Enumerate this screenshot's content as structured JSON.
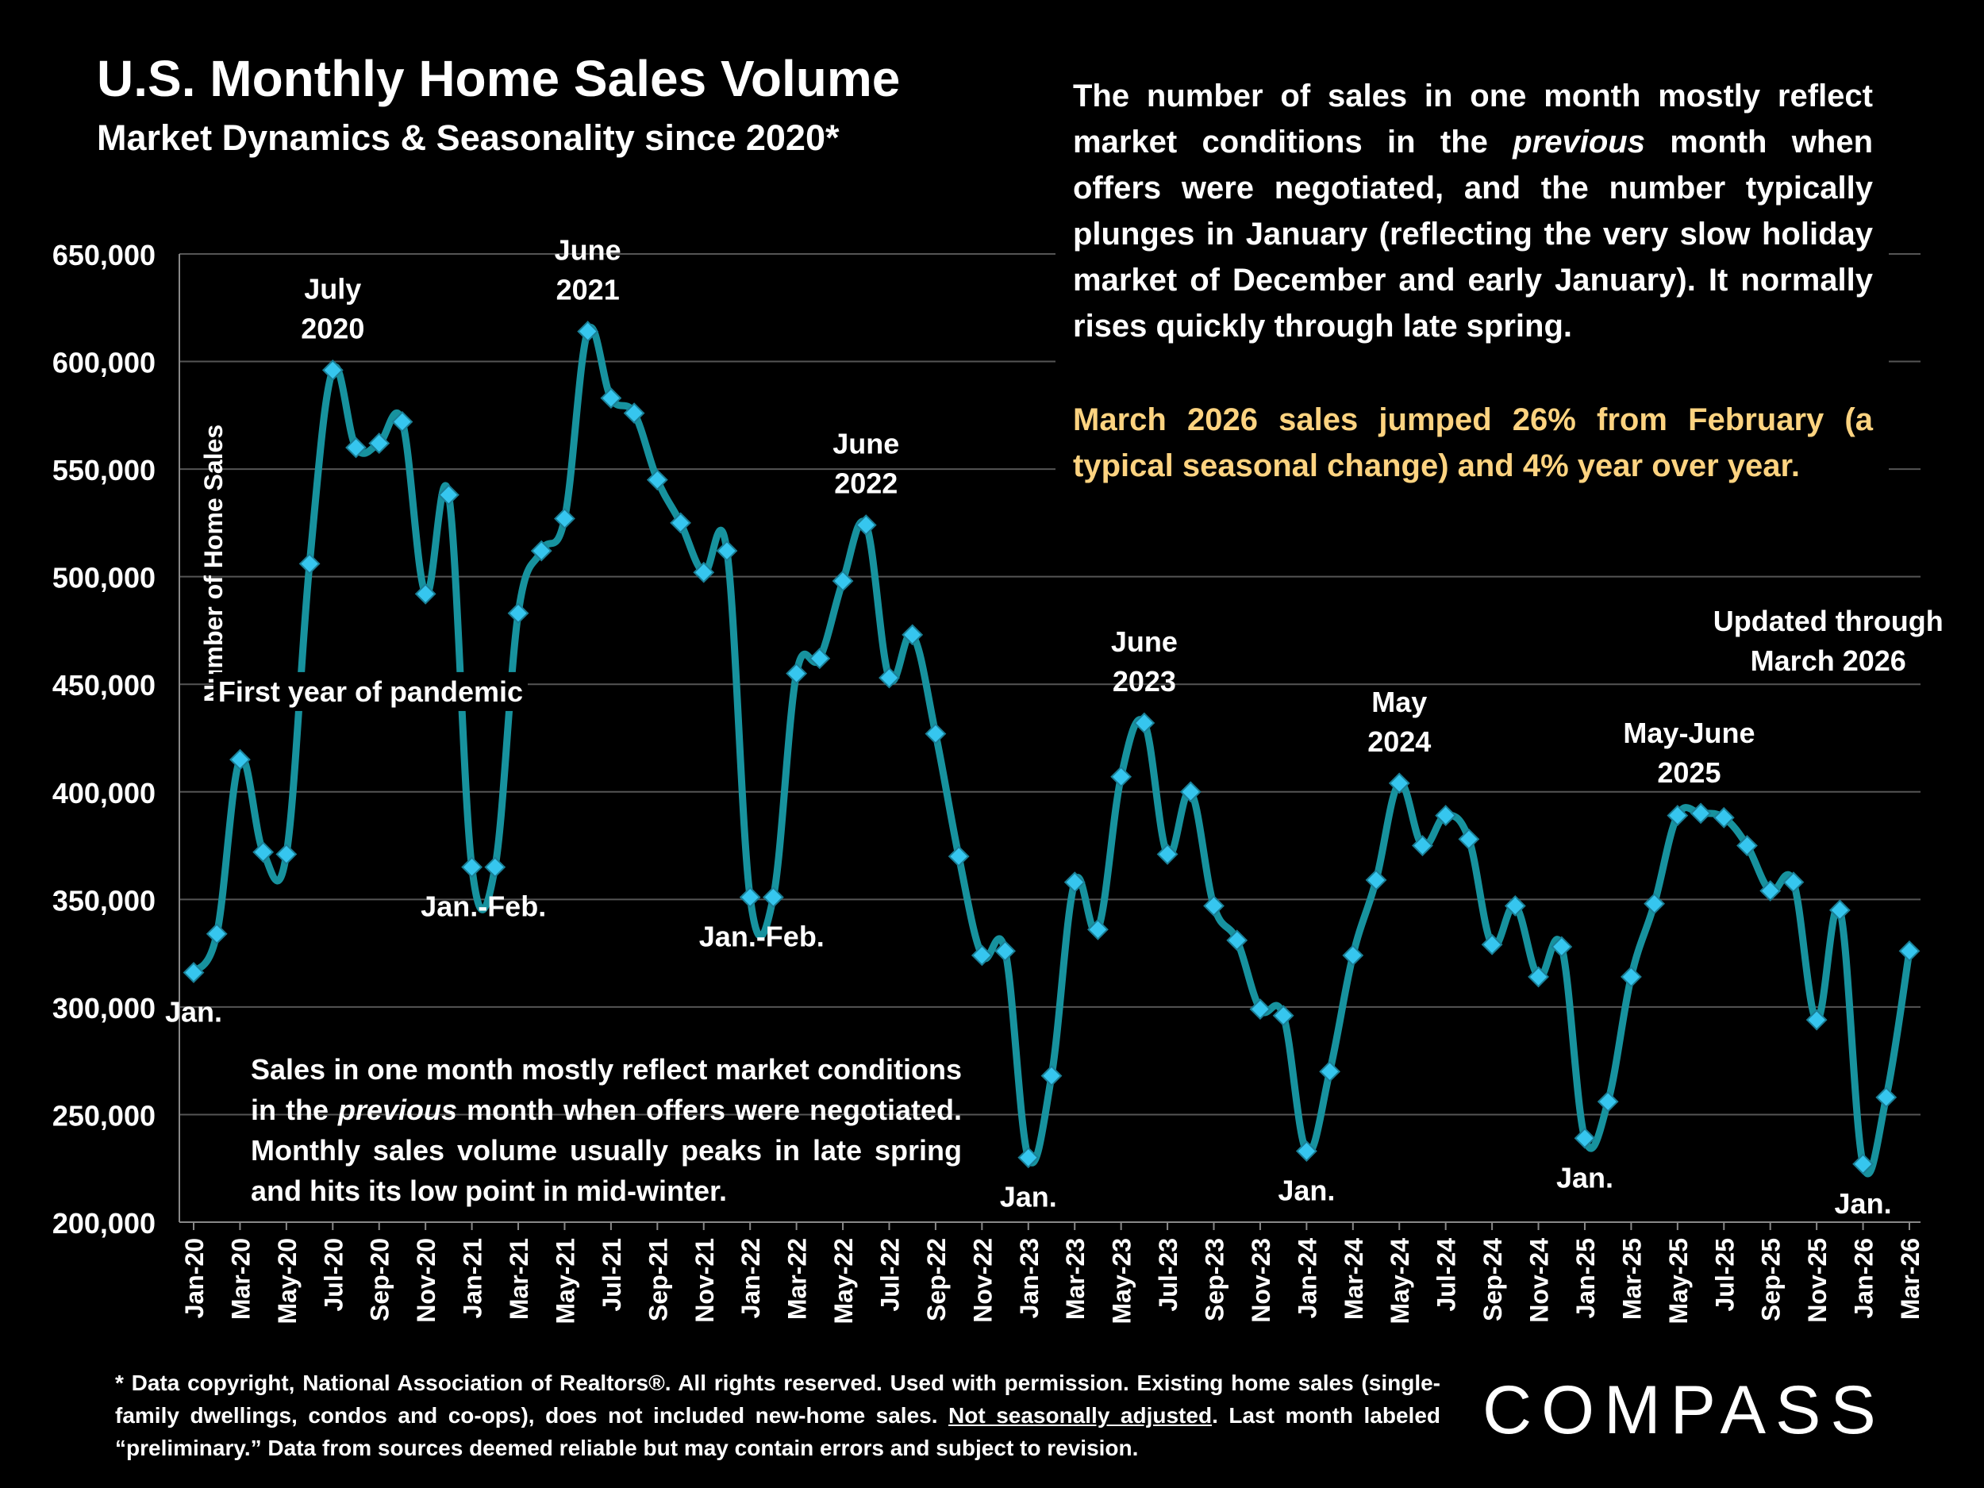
{
  "title": "U.S. Monthly Home Sales Volume",
  "subtitle": "Market Dynamics & Seasonality since 2020*",
  "description": {
    "part1": "The number of sales in one month mostly reflect market conditions in the ",
    "italic": "previous",
    "part2": " month when offers were negotiated, and the number typically plunges in January (reflecting the very slow holiday market of December and early January). It normally rises quickly through late spring."
  },
  "highlight": "March 2026 sales jumped 26% from February (a typical seasonal change) and 4% year over year.",
  "note": {
    "part1": "Sales in one month mostly reflect market conditions in the ",
    "italic": "previous",
    "part2": " month when offers were negotiated. Monthly sales volume usually peaks in late spring and hits its low point in mid-winter."
  },
  "footnote": {
    "part1": "* Data copyright, National Association of Realtors®. All rights reserved. Used with permission. Existing home sales (single-family dwellings, condos and co-ops), does not included new-home sales. ",
    "underlined": "Not seasonally adjusted",
    "part2": ". Last month labeled “preliminary.” Data from sources deemed reliable but may contain errors and subject to revision."
  },
  "logo": "COMPASS",
  "colors": {
    "background": "#000000",
    "line": "#17929e",
    "marker": "#36c6ef",
    "highlight": "#fdd380",
    "grid": "#555555",
    "text": "#ffffff"
  },
  "chart_data": {
    "type": "line",
    "title": "U.S. Monthly Home Sales Volume",
    "ylabel": "Number of Home Sales",
    "xlabel": "",
    "ylim": [
      200000,
      650000
    ],
    "yticks": [
      200000,
      250000,
      300000,
      350000,
      400000,
      450000,
      500000,
      550000,
      600000,
      650000
    ],
    "ytick_labels": [
      "200,000",
      "250,000",
      "300,000",
      "350,000",
      "400,000",
      "450,000",
      "500,000",
      "550,000",
      "600,000",
      "650,000"
    ],
    "x_tick_labels": [
      "Jan-20",
      "Mar-20",
      "May-20",
      "Jul-20",
      "Sep-20",
      "Nov-20",
      "Jan-21",
      "Mar-21",
      "May-21",
      "Jul-21",
      "Sep-21",
      "Nov-21",
      "Jan-22",
      "Mar-22",
      "May-22",
      "Jul-22",
      "Sep-22",
      "Nov-22",
      "Jan-23",
      "Mar-23",
      "May-23",
      "Jul-23",
      "Sep-23",
      "Nov-23",
      "Jan-24",
      "Mar-24",
      "May-24",
      "Jul-24",
      "Sep-24",
      "Nov-24",
      "Jan-25",
      "Mar-25",
      "May-25",
      "Jul-25",
      "Sep-25",
      "Nov-25",
      "Jan-26",
      "Mar-26"
    ],
    "x_tick_every": 2,
    "grid": true,
    "series": [
      {
        "name": "Monthly Home Sales",
        "values": [
          316000,
          334000,
          415000,
          372000,
          371000,
          506000,
          596000,
          560000,
          562000,
          572000,
          492000,
          538000,
          365000,
          365000,
          483000,
          512000,
          527000,
          614000,
          583000,
          576000,
          545000,
          525000,
          502000,
          512000,
          351000,
          351000,
          455000,
          462000,
          498000,
          524000,
          453000,
          473000,
          427000,
          370000,
          324000,
          326000,
          230000,
          268000,
          358000,
          336000,
          407000,
          432000,
          371000,
          400000,
          347000,
          331000,
          299000,
          296000,
          233000,
          270000,
          324000,
          359000,
          404000,
          375000,
          389000,
          378000,
          329000,
          347000,
          314000,
          328000,
          239000,
          256000,
          314000,
          348000,
          389000,
          390000,
          388000,
          375000,
          354000,
          358000,
          294000,
          345000,
          227000,
          258000,
          326000
        ]
      }
    ],
    "annotations": [
      {
        "id": "jan-2020",
        "text": "Jan.",
        "index": 0,
        "position": "below"
      },
      {
        "id": "jul-2020",
        "text": "July\n2020",
        "index": 6,
        "position": "above"
      },
      {
        "id": "pandemic",
        "text": "First year of pandemic",
        "index": 9,
        "position": "middle"
      },
      {
        "id": "janfeb-2021",
        "text": "Jan.-Feb.",
        "index": 12.5,
        "position": "below"
      },
      {
        "id": "jun-2021",
        "text": "June\n2021",
        "index": 17,
        "position": "above"
      },
      {
        "id": "janfeb-2022",
        "text": "Jan.-Feb.",
        "index": 24.5,
        "position": "below"
      },
      {
        "id": "jun-2022",
        "text": "June\n2022",
        "index": 29,
        "position": "above"
      },
      {
        "id": "jan-2023",
        "text": "Jan.",
        "index": 36,
        "position": "below"
      },
      {
        "id": "jun-2023",
        "text": "June\n2023",
        "index": 41,
        "position": "above"
      },
      {
        "id": "jan-2024",
        "text": "Jan.",
        "index": 48,
        "position": "below"
      },
      {
        "id": "may-2024",
        "text": "May\n2024",
        "index": 52,
        "position": "above"
      },
      {
        "id": "jan-2025",
        "text": "Jan.",
        "index": 60,
        "position": "below"
      },
      {
        "id": "mayjun-2025",
        "text": "May-June\n2025",
        "index": 64.5,
        "position": "above"
      },
      {
        "id": "updated",
        "text": "Updated through\nMarch 2026",
        "index": 70.5,
        "position": "top"
      },
      {
        "id": "jan-2026",
        "text": "Jan.",
        "index": 72,
        "position": "below"
      }
    ]
  }
}
